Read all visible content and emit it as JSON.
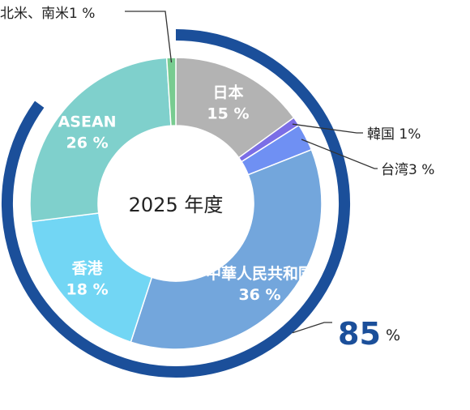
{
  "chart_data": {
    "type": "pie",
    "style": "donut",
    "center_label": "2025 年度",
    "slices": [
      {
        "name": "日本",
        "value": 15,
        "value_label": "15 %",
        "color": "#b3b3b3"
      },
      {
        "name": "韓国",
        "value": 1,
        "value_label": "1%",
        "color": "#7b6ee6"
      },
      {
        "name": "台湾",
        "value": 3,
        "value_label": "3 %",
        "color": "#6f90f3"
      },
      {
        "name": "中華人民共和国",
        "value": 36,
        "value_label": "36 %",
        "color": "#73a6dc"
      },
      {
        "name": "香港",
        "value": 18,
        "value_label": "18 %",
        "color": "#72d6f4"
      },
      {
        "name": "ASEAN",
        "value": 26,
        "value_label": "26 %",
        "color": "#7fd0cc"
      },
      {
        "name": "北米、南米",
        "value": 1,
        "value_label": "1 %",
        "color": "#78cc90"
      }
    ],
    "group_total": {
      "value": 85,
      "value_label": "85",
      "unit": "%",
      "color": "#1b4f9a"
    }
  }
}
